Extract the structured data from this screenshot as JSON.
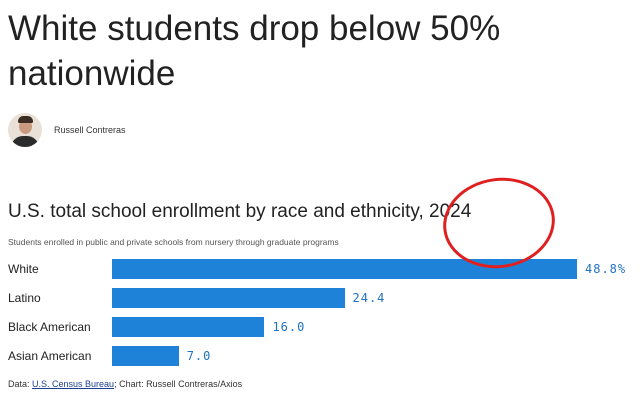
{
  "headline": "White students drop below 50% nationwide",
  "author": {
    "name": "Russell Contreras"
  },
  "chart_data": {
    "type": "bar",
    "orientation": "horizontal",
    "title": "U.S. total school enrollment by race and ethnicity, 2024",
    "subtitle": "Students enrolled in public and private schools from nursery through graduate programs",
    "categories": [
      "White",
      "Latino",
      "Black American",
      "Asian American"
    ],
    "values": [
      48.8,
      24.4,
      16.0,
      7.0
    ],
    "value_labels": [
      "48.8%",
      "24.4",
      "16.0",
      "7.0"
    ],
    "unit": "%",
    "grid": false,
    "bar_color": "#1f82d9"
  },
  "source": {
    "prefix": "Data: ",
    "link_text": "U.S. Census Bureau",
    "suffix": "; Chart: Russell Contreras/Axios"
  },
  "annotation_color": "#e02020"
}
